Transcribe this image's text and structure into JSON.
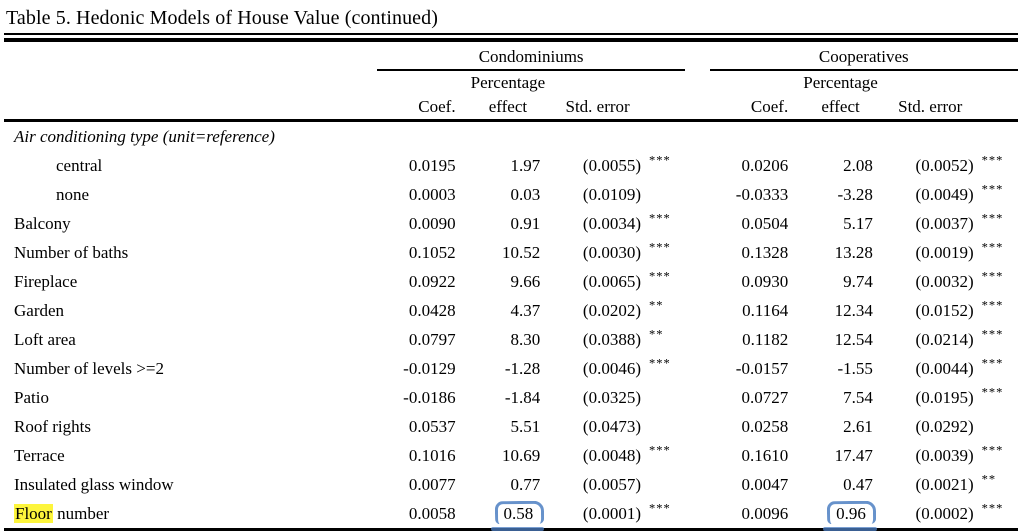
{
  "title": "Table 5. Hedonic Models of House Value (continued)",
  "header": {
    "group1": "Condominiums",
    "group2": "Cooperatives",
    "percentage": "Percentage",
    "coef": "Coef.",
    "effect": "effect",
    "std_error": "Std. error"
  },
  "annotations": {
    "highlight_color": "#fdf53c",
    "pen_color": "#4d7fc3",
    "highlighted_word": "Floor",
    "circled_values": [
      "0.58",
      "0.96"
    ]
  },
  "rows": [
    {
      "section": true,
      "label": "Air conditioning type (unit=reference)"
    },
    {
      "label": "central",
      "indent": true,
      "condo": {
        "coef": "0.0195",
        "effect": "1.97",
        "std": "(0.0055)",
        "stars": "***"
      },
      "coop": {
        "coef": "0.0206",
        "effect": "2.08",
        "std": "(0.0052)",
        "stars": "***"
      }
    },
    {
      "label": "none",
      "indent": true,
      "condo": {
        "coef": "0.0003",
        "effect": "0.03",
        "std": "(0.0109)",
        "stars": ""
      },
      "coop": {
        "coef": "-0.0333",
        "effect": "-3.28",
        "std": "(0.0049)",
        "stars": "***"
      }
    },
    {
      "label": "Balcony",
      "condo": {
        "coef": "0.0090",
        "effect": "0.91",
        "std": "(0.0034)",
        "stars": "***"
      },
      "coop": {
        "coef": "0.0504",
        "effect": "5.17",
        "std": "(0.0037)",
        "stars": "***"
      }
    },
    {
      "label": "Number of baths",
      "condo": {
        "coef": "0.1052",
        "effect": "10.52",
        "std": "(0.0030)",
        "stars": "***"
      },
      "coop": {
        "coef": "0.1328",
        "effect": "13.28",
        "std": "(0.0019)",
        "stars": "***"
      }
    },
    {
      "label": "Fireplace",
      "condo": {
        "coef": "0.0922",
        "effect": "9.66",
        "std": "(0.0065)",
        "stars": "***"
      },
      "coop": {
        "coef": "0.0930",
        "effect": "9.74",
        "std": "(0.0032)",
        "stars": "***"
      }
    },
    {
      "label": "Garden",
      "condo": {
        "coef": "0.0428",
        "effect": "4.37",
        "std": "(0.0202)",
        "stars": "**"
      },
      "coop": {
        "coef": "0.1164",
        "effect": "12.34",
        "std": "(0.0152)",
        "stars": "***"
      }
    },
    {
      "label": "Loft area",
      "condo": {
        "coef": "0.0797",
        "effect": "8.30",
        "std": "(0.0388)",
        "stars": "**"
      },
      "coop": {
        "coef": "0.1182",
        "effect": "12.54",
        "std": "(0.0214)",
        "stars": "***"
      }
    },
    {
      "label": "Number of levels >=2",
      "condo": {
        "coef": "-0.0129",
        "effect": "-1.28",
        "std": "(0.0046)",
        "stars": "***"
      },
      "coop": {
        "coef": "-0.0157",
        "effect": "-1.55",
        "std": "(0.0044)",
        "stars": "***"
      }
    },
    {
      "label": "Patio",
      "condo": {
        "coef": "-0.0186",
        "effect": "-1.84",
        "std": "(0.0325)",
        "stars": ""
      },
      "coop": {
        "coef": "0.0727",
        "effect": "7.54",
        "std": "(0.0195)",
        "stars": "***"
      }
    },
    {
      "label": "Roof rights",
      "condo": {
        "coef": "0.0537",
        "effect": "5.51",
        "std": "(0.0473)",
        "stars": ""
      },
      "coop": {
        "coef": "0.0258",
        "effect": "2.61",
        "std": "(0.0292)",
        "stars": ""
      }
    },
    {
      "label": "Terrace",
      "condo": {
        "coef": "0.1016",
        "effect": "10.69",
        "std": "(0.0048)",
        "stars": "***"
      },
      "coop": {
        "coef": "0.1610",
        "effect": "17.47",
        "std": "(0.0039)",
        "stars": "***"
      }
    },
    {
      "label": "Insulated glass window",
      "condo": {
        "coef": "0.0077",
        "effect": "0.77",
        "std": "(0.0057)",
        "stars": ""
      },
      "coop": {
        "coef": "0.0047",
        "effect": "0.47",
        "std": "(0.0021)",
        "stars": "**"
      }
    },
    {
      "label": "Floor number",
      "highlight_word": "Floor",
      "label_rest": " number",
      "condo": {
        "coef": "0.0058",
        "effect": "0.58",
        "effect_circled": true,
        "std": "(0.0001)",
        "stars": "***"
      },
      "coop": {
        "coef": "0.0096",
        "effect": "0.96",
        "effect_circled": true,
        "std": "(0.0002)",
        "stars": "***"
      }
    }
  ]
}
